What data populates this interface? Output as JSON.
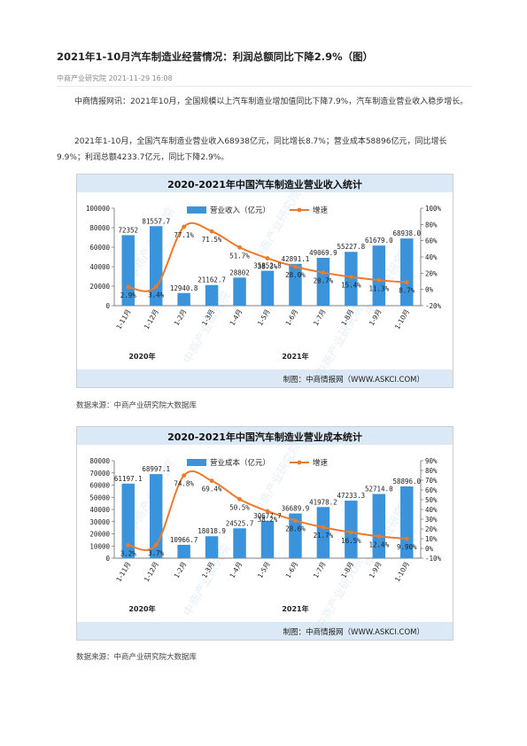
{
  "article": {
    "title": "2021年1-10月汽车制造业经营情况：利润总额同比下降2.9%（图）",
    "meta": "中商产业研究院 2021-11-29 16:08",
    "para1": "中商情报网讯：2021年10月，全国规模以上汽车制造业增加值同比下降7.9%，汽车制造业营业收入稳步增长。",
    "para2": "2021年1-10月，全国汽车制造业营业收入68938亿元，同比增长8.7%；营业成本58896亿元，同比增长9.9%；利润总额4233.7亿元，同比下降2.9%。",
    "source1": "数据来源：中商产业研究院大数据库",
    "source2": "数据来源：中商产业研究院大数据库"
  },
  "colors": {
    "bar": "#3b93dc",
    "line": "#ec7a2c",
    "header": "#dbe9f6"
  },
  "watermark": "中商产业研究院",
  "chart_data": [
    {
      "type": "bar",
      "title": "2020-2021年中国汽车制造业营业收入统计",
      "credit": "制图：中商情报网（WWW.ASKCI.COM）",
      "categories": [
        "1-11月",
        "1-12月",
        "1-2月",
        "1-3月",
        "1-4月",
        "1-5月",
        "1-6月",
        "1-7月",
        "1-8月",
        "1-9月",
        "1-10月"
      ],
      "year_labels": [
        "2020年",
        "2021年"
      ],
      "series": [
        {
          "name": "营业收入（亿元）",
          "axis": "left",
          "values": [
            72352,
            81557.7,
            12940.8,
            21162.7,
            28802,
            35852.8,
            42891.1,
            49069.9,
            55227.8,
            61679.0,
            68938.0
          ],
          "labels": [
            "72352",
            "81557.7",
            "12940.8",
            "21162.7",
            "28802",
            "35852.8",
            "42891.1",
            "49069.9",
            "55227.8",
            "61679.0",
            "68938.0"
          ]
        },
        {
          "name": "增速",
          "axis": "right",
          "type": "line",
          "values": [
            2.9,
            3.4,
            77.1,
            71.5,
            51.7,
            38.3,
            28.0,
            20.7,
            15.4,
            11.3,
            8.7
          ],
          "labels": [
            "2.9%",
            "3.4%",
            "77.1%",
            "71.5%",
            "51.7%",
            "38.3%",
            "28.0%",
            "20.7%",
            "15.4%",
            "11.3%",
            "8.7%"
          ]
        }
      ],
      "ylim": [
        0,
        100000
      ],
      "yticks": [
        "0",
        "20000",
        "40000",
        "60000",
        "80000",
        "100000"
      ],
      "y2lim": [
        -20,
        100
      ],
      "y2ticks": [
        "-20%",
        "0%",
        "20%",
        "40%",
        "60%",
        "80%",
        "100%"
      ],
      "legend": "top"
    },
    {
      "type": "bar",
      "title": "2020-2021年中国汽车制造业营业成本统计",
      "credit": "制图：中商情报网（WWW.ASKCI.COM）",
      "categories": [
        "1-11月",
        "1-12月",
        "1-2月",
        "1-3月",
        "1-4月",
        "1-5月",
        "1-6月",
        "1-7月",
        "1-8月",
        "1-9月",
        "1-10月"
      ],
      "year_labels": [
        "2020年",
        "2021年"
      ],
      "series": [
        {
          "name": "营业成本（亿元）",
          "axis": "left",
          "values": [
            61197.1,
            68997.1,
            10966.7,
            18018.9,
            24525.7,
            30677.7,
            36689.9,
            41978.2,
            47233.3,
            52714.0,
            58896.0
          ],
          "labels": [
            "61197.1",
            "68997.1",
            "10966.7",
            "18018.9",
            "24525.7",
            "30677.7",
            "36689.9",
            "41978.2",
            "47233.3",
            "52714.0",
            "58896.0"
          ]
        },
        {
          "name": "增速",
          "axis": "right",
          "type": "line",
          "values": [
            3.2,
            3.7,
            74.8,
            69.4,
            50.5,
            38.2,
            28.6,
            21.7,
            16.5,
            12.4,
            9.9
          ],
          "labels": [
            "3.2%",
            "3.7%",
            "74.8%",
            "69.4%",
            "50.5%",
            "38.2%",
            "28.6%",
            "21.7%",
            "16.5%",
            "12.4%",
            "9.90%"
          ]
        }
      ],
      "ylim": [
        0,
        80000
      ],
      "yticks": [
        "0",
        "10000",
        "20000",
        "30000",
        "40000",
        "50000",
        "60000",
        "70000",
        "80000"
      ],
      "y2lim": [
        -10,
        90
      ],
      "y2ticks": [
        "-10%",
        "0%",
        "10%",
        "20%",
        "30%",
        "40%",
        "50%",
        "60%",
        "70%",
        "80%",
        "90%"
      ],
      "legend": "top"
    }
  ]
}
